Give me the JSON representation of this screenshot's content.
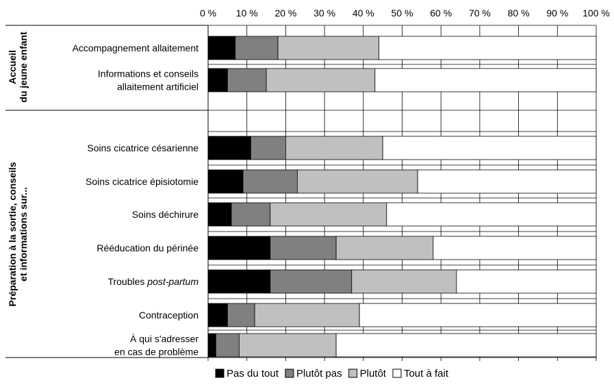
{
  "chart_data": {
    "type": "bar",
    "orientation": "horizontal",
    "stacked": true,
    "percent": true,
    "xlim": [
      0,
      100
    ],
    "x_ticks": [
      "0 %",
      "10 %",
      "20 %",
      "30 %",
      "40 %",
      "50 %",
      "60 %",
      "70 %",
      "80 %",
      "90 %",
      "100 %"
    ],
    "grid": true,
    "legend_position": "bottom",
    "groups": [
      {
        "label_lines": [
          "Accueil",
          "du jeune enfant"
        ],
        "categories": [
          0,
          1
        ]
      },
      {
        "label_lines": [
          "Préparation à la sortie, conseils",
          "et informations sur..."
        ],
        "categories": [
          2,
          3,
          4,
          5,
          6,
          7,
          8
        ]
      }
    ],
    "categories": [
      {
        "lines": [
          [
            {
              "t": "Accompagnement allaitement",
              "i": false
            }
          ]
        ]
      },
      {
        "lines": [
          [
            {
              "t": "Informations et conseils",
              "i": false
            }
          ],
          [
            {
              "t": "allaitement artificiel",
              "i": false
            }
          ]
        ]
      },
      {
        "lines": [
          [
            {
              "t": "Soins cicatrice césarienne",
              "i": false
            }
          ]
        ]
      },
      {
        "lines": [
          [
            {
              "t": "Soins cicatrice épisiotomie",
              "i": false
            }
          ]
        ]
      },
      {
        "lines": [
          [
            {
              "t": "Soins déchirure",
              "i": false
            }
          ]
        ]
      },
      {
        "lines": [
          [
            {
              "t": "Rééducation du périnée",
              "i": false
            }
          ]
        ]
      },
      {
        "lines": [
          [
            {
              "t": "Troubles ",
              "i": false
            },
            {
              "t": "post-partum",
              "i": true
            }
          ]
        ]
      },
      {
        "lines": [
          [
            {
              "t": "Contraception",
              "i": false
            }
          ]
        ]
      },
      {
        "lines": [
          [
            {
              "t": "À qui s'adresser",
              "i": false
            }
          ],
          [
            {
              "t": "en cas de problème",
              "i": false
            }
          ]
        ]
      }
    ],
    "series": [
      {
        "name": "Pas du tout",
        "color": "#000000",
        "values": [
          7,
          5,
          11,
          9,
          6,
          16,
          16,
          5,
          2
        ]
      },
      {
        "name": "Plutôt pas",
        "color": "#808080",
        "values": [
          11,
          10,
          9,
          14,
          10,
          17,
          21,
          7,
          6
        ]
      },
      {
        "name": "Plutôt",
        "color": "#c0c0c0",
        "values": [
          26,
          28,
          25,
          31,
          30,
          25,
          27,
          27,
          25
        ]
      },
      {
        "name": "Tout à fait",
        "color": "#ffffff",
        "values": [
          56,
          57,
          55,
          46,
          54,
          42,
          36,
          61,
          67
        ]
      }
    ]
  }
}
